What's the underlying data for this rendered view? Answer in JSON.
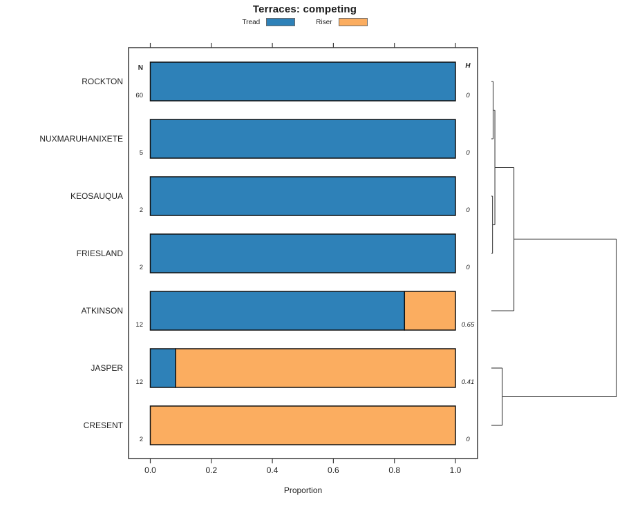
{
  "title": "Terraces: competing",
  "legend": [
    {
      "label": "Tread",
      "color": "#2E81B8"
    },
    {
      "label": "Riser",
      "color": "#FBAD60"
    }
  ],
  "columns": {
    "n_header": "N",
    "h_header": "H"
  },
  "axis": {
    "xlabel": "Proportion",
    "x_ticks": [
      "0.0",
      "0.2",
      "0.4",
      "0.6",
      "0.8",
      "1.0"
    ]
  },
  "chart_data": {
    "type": "bar",
    "stacked": true,
    "orientation": "horizontal",
    "title": "Terraces: competing",
    "xlabel": "Proportion",
    "xlim": [
      0,
      1
    ],
    "x_ticks": [
      0.0,
      0.2,
      0.4,
      0.6,
      0.8,
      1.0
    ],
    "categories": [
      "ROCKTON",
      "NUXMARUHANIXETE",
      "KEOSAUQUA",
      "FRIESLAND",
      "ATKINSON",
      "JASPER",
      "CRESENT"
    ],
    "series": [
      {
        "name": "Tread",
        "values": [
          1.0,
          1.0,
          1.0,
          1.0,
          0.833,
          0.083,
          0.0
        ]
      },
      {
        "name": "Riser",
        "values": [
          0.0,
          0.0,
          0.0,
          0.0,
          0.167,
          0.917,
          1.0
        ]
      }
    ],
    "rows": [
      {
        "label": "ROCKTON",
        "n": "60",
        "tread": 1.0,
        "riser": 0.0,
        "h": "0"
      },
      {
        "label": "NUXMARUHANIXETE",
        "n": "5",
        "tread": 1.0,
        "riser": 0.0,
        "h": "0"
      },
      {
        "label": "KEOSAUQUA",
        "n": "2",
        "tread": 1.0,
        "riser": 0.0,
        "h": "0"
      },
      {
        "label": "FRIESLAND",
        "n": "2",
        "tread": 1.0,
        "riser": 0.0,
        "h": "0"
      },
      {
        "label": "ATKINSON",
        "n": "12",
        "tread": 0.833,
        "riser": 0.167,
        "h": "0.65"
      },
      {
        "label": "JASPER",
        "n": "12",
        "tread": 0.083,
        "riser": 0.917,
        "h": "0.41"
      },
      {
        "label": "CRESENT",
        "n": "2",
        "tread": 0.0,
        "riser": 1.0,
        "h": "0"
      }
    ],
    "dendrogram": {
      "note": "heights normalized 0-1 to drawn extent; leaves are row indices",
      "h": 1.0,
      "children": [
        {
          "h": 0.18,
          "children": [
            {
              "h": 0.028,
              "children": [
                {
                  "h": 0.014,
                  "children": [
                    {
                      "leaf": 0
                    },
                    {
                      "leaf": 1
                    }
                  ]
                },
                {
                  "h": 0.009,
                  "children": [
                    {
                      "leaf": 2
                    },
                    {
                      "leaf": 3
                    }
                  ]
                }
              ]
            },
            {
              "leaf": 4
            }
          ]
        },
        {
          "h": 0.087,
          "children": [
            {
              "leaf": 5
            },
            {
              "leaf": 6
            }
          ]
        }
      ]
    },
    "colors": {
      "tread": "#2E81B8",
      "riser": "#FBAD60",
      "frame": "#3a3a3a",
      "bar_stroke": "#111111"
    }
  }
}
